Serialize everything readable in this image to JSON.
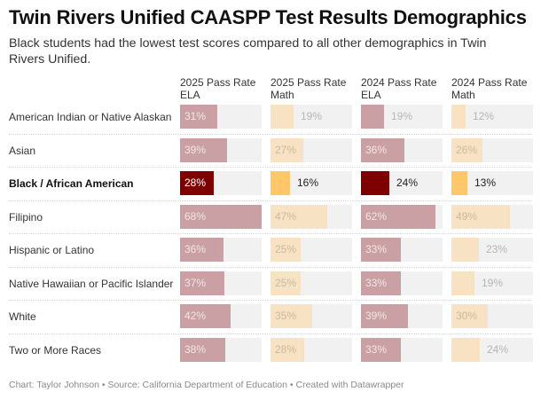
{
  "header": {
    "title": "Twin Rivers Unified CAASPP Test Results Demographics",
    "subtitle": "Black students had the lowest test scores compared to all other demographics in Twin Rivers Unified."
  },
  "colors": {
    "ela_muted": "#cba0a4",
    "math_muted": "#f7e3c3",
    "ela_highlight": "#7f0000",
    "math_highlight": "#ffc76a",
    "cell_background": "#f1f1f1",
    "muted_value_text_inside": "#f3e6e6",
    "muted_value_text_outside": "#b5b5b5",
    "highlight_value_text_inside": "#ffffff",
    "highlight_value_text_outside": "#222222"
  },
  "footer": {
    "text": "Chart: Taylor Johnson • Source: California Department of Education • Created with Datawrapper"
  },
  "chart_data": {
    "type": "table",
    "title": "Twin Rivers Unified CAASPP Test Results Demographics",
    "subtitle": "Black students had the lowest test scores compared to all other demographics in Twin Rivers Unified.",
    "columns": [
      {
        "key": "ela_2025",
        "label": "2025 Pass Rate ELA",
        "line1": "2025 Pass Rate",
        "line2": "ELA",
        "kind": "ela"
      },
      {
        "key": "math_2025",
        "label": "2025 Pass Rate Math",
        "line1": "2025 Pass Rate",
        "line2": "Math",
        "kind": "math"
      },
      {
        "key": "ela_2024",
        "label": "2024 Pass Rate ELA",
        "line1": "2024 Pass Rate",
        "line2": "ELA",
        "kind": "ela"
      },
      {
        "key": "math_2024",
        "label": "2024 Pass Rate Math",
        "line1": "2024 Pass Rate",
        "line2": "Math",
        "kind": "math"
      }
    ],
    "bar_scale_max_percent": 68,
    "unit": "%",
    "rows": [
      {
        "label": "American Indian or Native Alaskan",
        "highlight": false,
        "values": [
          31,
          19,
          19,
          12
        ]
      },
      {
        "label": "Asian",
        "highlight": false,
        "values": [
          39,
          27,
          36,
          26
        ]
      },
      {
        "label": "Black / African American",
        "highlight": true,
        "values": [
          28,
          16,
          24,
          13
        ]
      },
      {
        "label": "Filipino",
        "highlight": false,
        "values": [
          68,
          47,
          62,
          49
        ]
      },
      {
        "label": "Hispanic or Latino",
        "highlight": false,
        "values": [
          36,
          25,
          33,
          23
        ]
      },
      {
        "label": "Native Hawaiian or Pacific Islander",
        "highlight": false,
        "values": [
          37,
          25,
          33,
          19
        ]
      },
      {
        "label": "White",
        "highlight": false,
        "values": [
          42,
          35,
          39,
          30
        ]
      },
      {
        "label": "Two or More Races",
        "highlight": false,
        "values": [
          38,
          28,
          33,
          24
        ]
      }
    ],
    "source": "California Department of Education",
    "credit": "Chart: Taylor Johnson"
  }
}
